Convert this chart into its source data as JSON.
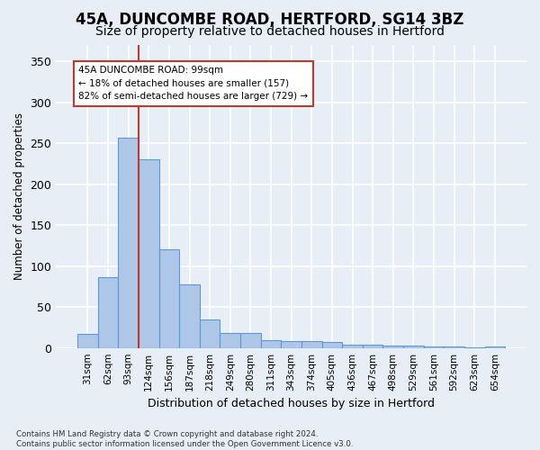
{
  "title": "45A, DUNCOMBE ROAD, HERTFORD, SG14 3BZ",
  "subtitle": "Size of property relative to detached houses in Hertford",
  "xlabel": "Distribution of detached houses by size in Hertford",
  "ylabel": "Number of detached properties",
  "bar_values": [
    17,
    87,
    257,
    230,
    120,
    78,
    35,
    18,
    18,
    10,
    8,
    8,
    7,
    4,
    4,
    3,
    3,
    2,
    2,
    1,
    2
  ],
  "bar_labels": [
    "31sqm",
    "62sqm",
    "93sqm",
    "124sqm",
    "156sqm",
    "187sqm",
    "218sqm",
    "249sqm",
    "280sqm",
    "311sqm",
    "343sqm",
    "374sqm",
    "405sqm",
    "436sqm",
    "467sqm",
    "498sqm",
    "529sqm",
    "561sqm",
    "592sqm",
    "623sqm",
    "654sqm"
  ],
  "bar_color": "#aec6e8",
  "bar_edge_color": "#5b9bd5",
  "vline_color": "#c0392b",
  "vline_index": 2.5,
  "annotation_text": "45A DUNCOMBE ROAD: 99sqm\n← 18% of detached houses are smaller (157)\n82% of semi-detached houses are larger (729) →",
  "annotation_box_color": "white",
  "annotation_box_edge_color": "#c0392b",
  "footnote": "Contains HM Land Registry data © Crown copyright and database right 2024.\nContains public sector information licensed under the Open Government Licence v3.0.",
  "ylim": [
    0,
    370
  ],
  "yticks": [
    0,
    50,
    100,
    150,
    200,
    250,
    300,
    350
  ],
  "background_color": "#e8eef6",
  "plot_bg_color": "#e8eef6",
  "grid_color": "white",
  "title_fontsize": 12,
  "subtitle_fontsize": 10
}
